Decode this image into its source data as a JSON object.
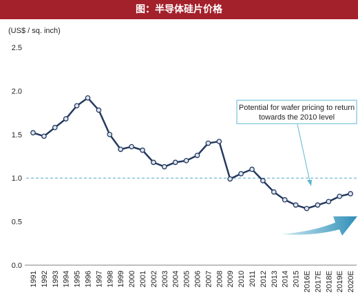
{
  "header": {
    "title": "图：半导体硅片价格"
  },
  "chart_data": {
    "type": "line",
    "title": "图：半导体硅片价格",
    "ylabel": "(US$ / sq. inch)",
    "xlabel": "",
    "ylim": [
      0,
      2.5
    ],
    "yticks": [
      "0.0",
      "0.5",
      "1.0",
      "1.5",
      "2.0",
      "2.5"
    ],
    "categories": [
      "1991",
      "1992",
      "1993",
      "1994",
      "1995",
      "1996",
      "1997",
      "1998",
      "1999",
      "2000",
      "2001",
      "2002",
      "2003",
      "2004",
      "2005",
      "2006",
      "2007",
      "2008",
      "2009",
      "2010",
      "2011",
      "2012",
      "2013",
      "2014",
      "2015",
      "2016E",
      "2017E",
      "2018E",
      "2019E",
      "2020E"
    ],
    "series": [
      {
        "values": [
          1.52,
          1.48,
          1.58,
          1.68,
          1.83,
          1.92,
          1.78,
          1.5,
          1.33,
          1.36,
          1.32,
          1.18,
          1.13,
          1.18,
          1.2,
          1.26,
          1.4,
          1.42,
          0.99,
          1.05,
          1.1,
          0.97,
          0.84,
          0.75,
          0.69,
          0.65,
          0.69,
          0.73,
          0.79,
          0.82
        ],
        "color": "#23395f"
      }
    ],
    "reference_line": {
      "value": 1.0,
      "color": "#4aa8c7"
    },
    "annotation": {
      "lines": [
        "Potential for wafer pricing to return",
        "towards the 2010 level"
      ],
      "color": "#5cb7d1"
    },
    "grid": false
  }
}
